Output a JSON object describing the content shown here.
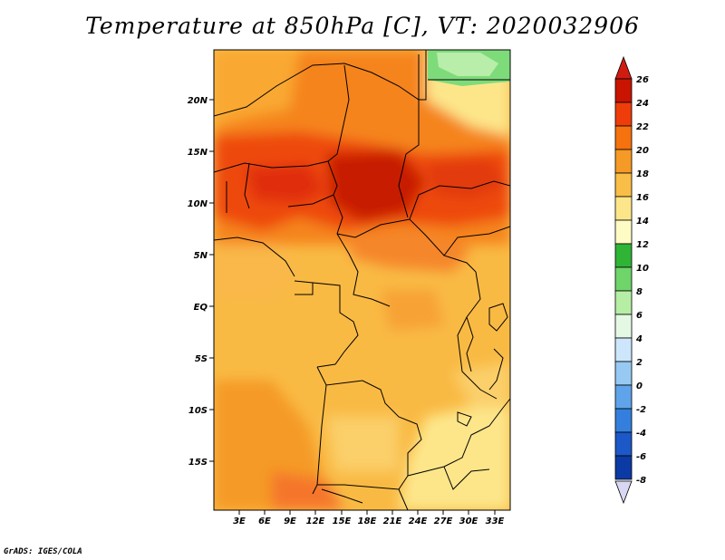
{
  "title": "Temperature at 850hPa [C], VT: 2020032906",
  "credit": "GrADS: IGES/COLA",
  "map": {
    "variable": "Temperature at 850hPa",
    "units": "C",
    "valid_time": "2020032906",
    "lat_labels": [
      "20N",
      "15N",
      "10N",
      "5N",
      "EQ",
      "5S",
      "10S",
      "15S"
    ],
    "lon_labels": [
      "3E",
      "6E",
      "9E",
      "12E",
      "15E",
      "18E",
      "21E",
      "24E",
      "27E",
      "30E",
      "33E"
    ]
  },
  "colorbar": {
    "labels": [
      "26",
      "24",
      "22",
      "20",
      "18",
      "16",
      "14",
      "12",
      "10",
      "8",
      "6",
      "4",
      "2",
      "0",
      "-2",
      "-4",
      "-6",
      "-8"
    ],
    "colors": [
      "#c81400",
      "#ee3c0a",
      "#f5720e",
      "#f59a26",
      "#f9be48",
      "#fde68a",
      "#fefbc4",
      "#2fb436",
      "#6fd46a",
      "#b7eea5",
      "#e4f8e4",
      "#cde6fb",
      "#97c9f3",
      "#5fa4ea",
      "#347fdd",
      "#1c58c8",
      "#0c3aa4",
      "#07147c"
    ],
    "overflow_high_color": "#d01c10",
    "overflow_low_color": "#d8d8f4"
  }
}
